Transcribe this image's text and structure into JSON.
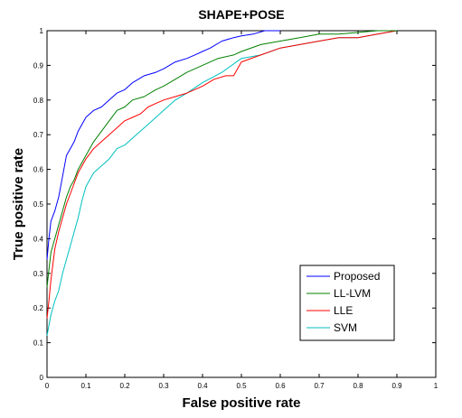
{
  "chart_data": {
    "type": "line",
    "title": "SHAPE+POSE",
    "xlabel": "False positive rate",
    "ylabel": "True positive rate",
    "xlim": [
      0,
      1
    ],
    "ylim": [
      0,
      1
    ],
    "xticks": [
      "0",
      "0.1",
      "0.2",
      "0.3",
      "0.4",
      "0.5",
      "0.6",
      "0.7",
      "0.8",
      "0.9",
      "1"
    ],
    "yticks": [
      "0",
      "0.1",
      "0.2",
      "0.3",
      "0.4",
      "0.5",
      "0.6",
      "0.7",
      "0.8",
      "0.9",
      "1"
    ],
    "grid": false,
    "legend_position": "bottom-right",
    "series": [
      {
        "name": "Proposed",
        "color": "#0000ff",
        "x": [
          0,
          0.005,
          0.01,
          0.02,
          0.03,
          0.04,
          0.05,
          0.06,
          0.07,
          0.08,
          0.09,
          0.1,
          0.12,
          0.14,
          0.16,
          0.18,
          0.2,
          0.22,
          0.25,
          0.28,
          0.3,
          0.33,
          0.36,
          0.38,
          0.4,
          0.42,
          0.45,
          0.48,
          0.5,
          0.53,
          0.56,
          0.58,
          0.6
        ],
        "y": [
          0.34,
          0.4,
          0.45,
          0.48,
          0.52,
          0.58,
          0.64,
          0.66,
          0.68,
          0.71,
          0.73,
          0.75,
          0.77,
          0.78,
          0.8,
          0.82,
          0.83,
          0.85,
          0.87,
          0.88,
          0.89,
          0.91,
          0.92,
          0.93,
          0.94,
          0.95,
          0.97,
          0.98,
          0.985,
          0.99,
          1.0,
          1.0,
          1.0
        ]
      },
      {
        "name": "LL-LVM",
        "color": "#008000",
        "x": [
          0,
          0.005,
          0.01,
          0.02,
          0.03,
          0.04,
          0.05,
          0.06,
          0.07,
          0.08,
          0.1,
          0.12,
          0.14,
          0.16,
          0.18,
          0.2,
          0.22,
          0.25,
          0.28,
          0.3,
          0.33,
          0.36,
          0.4,
          0.44,
          0.48,
          0.5,
          0.55,
          0.6,
          0.65,
          0.7,
          0.75,
          0.8,
          0.85,
          0.9
        ],
        "y": [
          0.26,
          0.31,
          0.36,
          0.4,
          0.44,
          0.48,
          0.52,
          0.55,
          0.57,
          0.6,
          0.64,
          0.68,
          0.71,
          0.74,
          0.77,
          0.78,
          0.8,
          0.81,
          0.83,
          0.84,
          0.86,
          0.88,
          0.9,
          0.92,
          0.93,
          0.94,
          0.96,
          0.97,
          0.98,
          0.99,
          0.99,
          0.995,
          1.0,
          1.0
        ]
      },
      {
        "name": "LLE",
        "color": "#ff0000",
        "x": [
          0,
          0.005,
          0.01,
          0.02,
          0.03,
          0.04,
          0.05,
          0.06,
          0.07,
          0.08,
          0.09,
          0.1,
          0.12,
          0.14,
          0.16,
          0.18,
          0.2,
          0.22,
          0.24,
          0.26,
          0.28,
          0.3,
          0.33,
          0.36,
          0.4,
          0.43,
          0.46,
          0.48,
          0.5,
          0.55,
          0.6,
          0.65,
          0.7,
          0.75,
          0.8,
          0.85,
          0.9
        ],
        "y": [
          0.17,
          0.22,
          0.28,
          0.37,
          0.42,
          0.46,
          0.5,
          0.53,
          0.56,
          0.59,
          0.61,
          0.63,
          0.66,
          0.68,
          0.7,
          0.72,
          0.74,
          0.75,
          0.76,
          0.78,
          0.79,
          0.8,
          0.81,
          0.82,
          0.84,
          0.86,
          0.87,
          0.87,
          0.91,
          0.93,
          0.95,
          0.96,
          0.97,
          0.98,
          0.98,
          0.99,
          1.0
        ]
      },
      {
        "name": "SVM",
        "color": "#00bfbf",
        "x": [
          0,
          0.005,
          0.01,
          0.02,
          0.03,
          0.04,
          0.05,
          0.06,
          0.07,
          0.08,
          0.09,
          0.1,
          0.12,
          0.14,
          0.16,
          0.18,
          0.2,
          0.22,
          0.24,
          0.26,
          0.28,
          0.3,
          0.33,
          0.36,
          0.4,
          0.45,
          0.5,
          0.55,
          0.6,
          0.65,
          0.7,
          0.75,
          0.8,
          0.85,
          0.9
        ],
        "y": [
          0.12,
          0.15,
          0.18,
          0.22,
          0.25,
          0.3,
          0.34,
          0.38,
          0.42,
          0.46,
          0.51,
          0.55,
          0.59,
          0.61,
          0.63,
          0.66,
          0.67,
          0.69,
          0.71,
          0.73,
          0.75,
          0.77,
          0.8,
          0.82,
          0.85,
          0.88,
          0.92,
          0.93,
          0.95,
          0.96,
          0.97,
          0.98,
          0.98,
          0.99,
          1.0
        ]
      }
    ]
  }
}
